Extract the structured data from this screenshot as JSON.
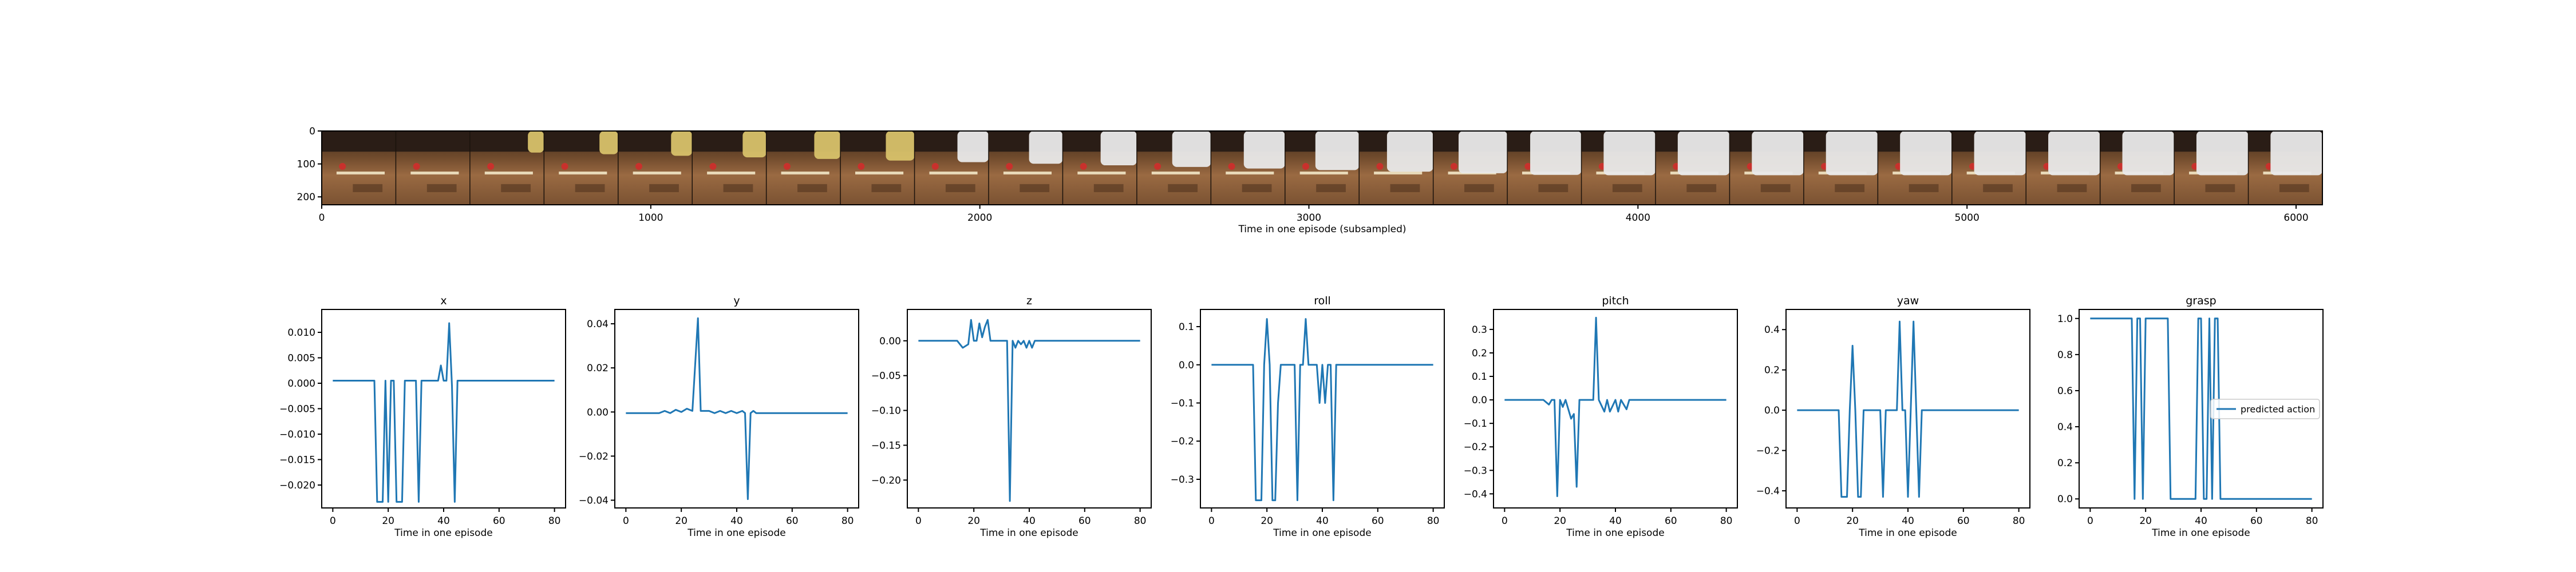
{
  "colors": {
    "series": "#1f77b4",
    "wood": "#8b5e3c",
    "wood_dark": "#5a3b22",
    "wall": "#2a1d16",
    "robot_arm": "#e9e9e9",
    "object_red": "#c8312c"
  },
  "filmstrip": {
    "xlabel": "Time in one episode (subsampled)",
    "x_ticks": [
      "0",
      "1000",
      "2000",
      "3000",
      "4000",
      "5000",
      "6000"
    ],
    "y_ticks": [
      "0",
      "100",
      "200"
    ],
    "x_range": [
      0,
      6080
    ],
    "y_range": [
      0,
      224
    ],
    "frame_count": 27
  },
  "chart_data": [
    {
      "type": "line",
      "title": "x",
      "xlabel": "Time in one episode",
      "ylabel": "",
      "xlim": [
        -4,
        84
      ],
      "ylim": [
        -0.0245,
        0.0145
      ],
      "x_ticks": [
        0,
        20,
        40,
        60,
        80
      ],
      "y_ticks": [
        0.01,
        0.005,
        0.0,
        -0.005,
        -0.01,
        -0.015,
        -0.02
      ],
      "y_tick_labels": [
        "0.010",
        "0.005",
        "0.000",
        "−0.005",
        "−0.010",
        "−0.015",
        "−0.020"
      ],
      "series": [
        {
          "name": "",
          "points": [
            [
              0,
              0.0005
            ],
            [
              14,
              0.0005
            ],
            [
              15,
              0.0005
            ],
            [
              16,
              -0.0233
            ],
            [
              18,
              -0.0233
            ],
            [
              19,
              0.0005
            ],
            [
              20,
              -0.0233
            ],
            [
              21,
              0.0005
            ],
            [
              22,
              0.0005
            ],
            [
              23,
              -0.0233
            ],
            [
              25,
              -0.0233
            ],
            [
              26,
              0.0005
            ],
            [
              30,
              0.0005
            ],
            [
              31,
              -0.0233
            ],
            [
              32,
              0.0005
            ],
            [
              36,
              0.0005
            ],
            [
              38,
              0.0005
            ],
            [
              39,
              0.0035
            ],
            [
              40,
              0.0005
            ],
            [
              41,
              0.0005
            ],
            [
              42,
              0.0118
            ],
            [
              43,
              -0.0005
            ],
            [
              44,
              -0.0233
            ],
            [
              45,
              0.0005
            ],
            [
              80,
              0.0005
            ]
          ]
        }
      ]
    },
    {
      "type": "line",
      "title": "y",
      "xlabel": "Time in one episode",
      "ylabel": "",
      "xlim": [
        -4,
        84
      ],
      "ylim": [
        -0.0435,
        0.0465
      ],
      "x_ticks": [
        0,
        20,
        40,
        60,
        80
      ],
      "y_ticks": [
        0.04,
        0.02,
        0.0,
        -0.02,
        -0.04
      ],
      "y_tick_labels": [
        "0.04",
        "0.02",
        "0.00",
        "−0.02",
        "−0.04"
      ],
      "series": [
        {
          "name": "",
          "points": [
            [
              0,
              -0.0005
            ],
            [
              12,
              -0.0005
            ],
            [
              14,
              0.0005
            ],
            [
              16,
              -0.0005
            ],
            [
              18,
              0.001
            ],
            [
              20,
              0.0
            ],
            [
              22,
              0.0015
            ],
            [
              24,
              0.0005
            ],
            [
              26,
              0.0425
            ],
            [
              27,
              0.0005
            ],
            [
              30,
              0.0005
            ],
            [
              32,
              -0.0005
            ],
            [
              34,
              0.0005
            ],
            [
              36,
              -0.0005
            ],
            [
              38,
              0.0005
            ],
            [
              40,
              -0.0005
            ],
            [
              42,
              0.0005
            ],
            [
              43,
              -0.0005
            ],
            [
              44,
              -0.0395
            ],
            [
              45,
              -0.0005
            ],
            [
              46,
              0.0005
            ],
            [
              47,
              -0.0005
            ],
            [
              80,
              -0.0005
            ]
          ]
        }
      ]
    },
    {
      "type": "line",
      "title": "z",
      "xlabel": "Time in one episode",
      "ylabel": "",
      "xlim": [
        -4,
        84
      ],
      "ylim": [
        -0.24,
        0.045
      ],
      "x_ticks": [
        0,
        20,
        40,
        60,
        80
      ],
      "y_ticks": [
        0.0,
        -0.05,
        -0.1,
        -0.15,
        -0.2
      ],
      "y_tick_labels": [
        "0.00",
        "−0.05",
        "−0.10",
        "−0.15",
        "−0.20"
      ],
      "series": [
        {
          "name": "",
          "points": [
            [
              0,
              0.0
            ],
            [
              14,
              0.0
            ],
            [
              16,
              -0.01
            ],
            [
              18,
              -0.005
            ],
            [
              19,
              0.03
            ],
            [
              20,
              0.0
            ],
            [
              21,
              0.0
            ],
            [
              22,
              0.025
            ],
            [
              23,
              0.005
            ],
            [
              24,
              0.02
            ],
            [
              25,
              0.03
            ],
            [
              26,
              0.0
            ],
            [
              30,
              0.0
            ],
            [
              32,
              0.0
            ],
            [
              33,
              -0.23
            ],
            [
              34,
              0.0
            ],
            [
              35,
              -0.01
            ],
            [
              36,
              0.0
            ],
            [
              37,
              -0.005
            ],
            [
              38,
              0.0
            ],
            [
              39,
              -0.01
            ],
            [
              40,
              0.0
            ],
            [
              41,
              -0.01
            ],
            [
              42,
              0.0
            ],
            [
              80,
              0.0
            ]
          ]
        }
      ]
    },
    {
      "type": "line",
      "title": "roll",
      "xlabel": "Time in one episode",
      "ylabel": "",
      "xlim": [
        -4,
        84
      ],
      "ylim": [
        -0.375,
        0.145
      ],
      "x_ticks": [
        0,
        20,
        40,
        60,
        80
      ],
      "y_ticks": [
        0.1,
        0.0,
        -0.1,
        -0.2,
        -0.3
      ],
      "y_tick_labels": [
        "0.1",
        "0.0",
        "−0.1",
        "−0.2",
        "−0.3"
      ],
      "series": [
        {
          "name": "",
          "points": [
            [
              0,
              0.0
            ],
            [
              14,
              0.0
            ],
            [
              15,
              0.0
            ],
            [
              16,
              -0.355
            ],
            [
              18,
              -0.355
            ],
            [
              19,
              0.0
            ],
            [
              20,
              0.12
            ],
            [
              21,
              0.0
            ],
            [
              22,
              -0.355
            ],
            [
              23,
              -0.355
            ],
            [
              24,
              -0.1
            ],
            [
              25,
              0.0
            ],
            [
              30,
              0.0
            ],
            [
              31,
              -0.355
            ],
            [
              32,
              0.0
            ],
            [
              33,
              0.0
            ],
            [
              34,
              0.12
            ],
            [
              35,
              0.0
            ],
            [
              38,
              0.0
            ],
            [
              39,
              -0.1
            ],
            [
              40,
              0.0
            ],
            [
              41,
              -0.1
            ],
            [
              42,
              0.0
            ],
            [
              43,
              0.0
            ],
            [
              44,
              -0.355
            ],
            [
              45,
              0.0
            ],
            [
              80,
              0.0
            ]
          ]
        }
      ]
    },
    {
      "type": "line",
      "title": "pitch",
      "xlabel": "Time in one episode",
      "ylabel": "",
      "xlim": [
        -4,
        84
      ],
      "ylim": [
        -0.46,
        0.385
      ],
      "x_ticks": [
        0,
        20,
        40,
        60,
        80
      ],
      "y_ticks": [
        0.3,
        0.2,
        0.1,
        0.0,
        -0.1,
        -0.2,
        -0.3,
        -0.4
      ],
      "y_tick_labels": [
        "0.3",
        "0.2",
        "0.1",
        "0.0",
        "−0.1",
        "−0.2",
        "−0.3",
        "−0.4"
      ],
      "series": [
        {
          "name": "",
          "points": [
            [
              0,
              0.0
            ],
            [
              14,
              0.0
            ],
            [
              16,
              -0.02
            ],
            [
              17,
              0.0
            ],
            [
              18,
              0.0
            ],
            [
              19,
              -0.41
            ],
            [
              20,
              0.0
            ],
            [
              21,
              -0.03
            ],
            [
              22,
              0.0
            ],
            [
              24,
              -0.08
            ],
            [
              25,
              -0.06
            ],
            [
              26,
              -0.37
            ],
            [
              27,
              0.0
            ],
            [
              32,
              0.0
            ],
            [
              33,
              0.35
            ],
            [
              34,
              0.0
            ],
            [
              36,
              -0.05
            ],
            [
              37,
              0.0
            ],
            [
              38,
              -0.05
            ],
            [
              40,
              0.0
            ],
            [
              41,
              -0.05
            ],
            [
              42,
              0.0
            ],
            [
              44,
              -0.04
            ],
            [
              45,
              0.0
            ],
            [
              80,
              0.0
            ]
          ]
        }
      ]
    },
    {
      "type": "line",
      "title": "yaw",
      "xlabel": "Time in one episode",
      "ylabel": "",
      "xlim": [
        -4,
        84
      ],
      "ylim": [
        -0.485,
        0.5
      ],
      "x_ticks": [
        0,
        20,
        40,
        60,
        80
      ],
      "y_ticks": [
        0.4,
        0.2,
        0.0,
        -0.2,
        -0.4
      ],
      "y_tick_labels": [
        "0.4",
        "0.2",
        "0.0",
        "−0.2",
        "−0.4"
      ],
      "series": [
        {
          "name": "",
          "points": [
            [
              0,
              0.0
            ],
            [
              14,
              0.0
            ],
            [
              15,
              0.0
            ],
            [
              16,
              -0.43
            ],
            [
              18,
              -0.43
            ],
            [
              19,
              0.0
            ],
            [
              20,
              0.32
            ],
            [
              21,
              0.0
            ],
            [
              22,
              -0.43
            ],
            [
              23,
              -0.43
            ],
            [
              24,
              0.0
            ],
            [
              25,
              0.0
            ],
            [
              30,
              0.0
            ],
            [
              31,
              -0.43
            ],
            [
              32,
              0.0
            ],
            [
              36,
              0.0
            ],
            [
              37,
              0.44
            ],
            [
              38,
              0.0
            ],
            [
              39,
              0.0
            ],
            [
              40,
              -0.43
            ],
            [
              41,
              0.0
            ],
            [
              42,
              0.44
            ],
            [
              43,
              0.0
            ],
            [
              44,
              -0.43
            ],
            [
              45,
              0.0
            ],
            [
              80,
              0.0
            ]
          ]
        }
      ]
    },
    {
      "type": "line",
      "title": "grasp",
      "xlabel": "Time in one episode",
      "ylabel": "",
      "xlim": [
        -4,
        84
      ],
      "ylim": [
        -0.05,
        1.05
      ],
      "x_ticks": [
        0,
        20,
        40,
        60,
        80
      ],
      "y_ticks": [
        1.0,
        0.8,
        0.6,
        0.4,
        0.2,
        0.0
      ],
      "y_tick_labels": [
        "1.0",
        "0.8",
        "0.6",
        "0.4",
        "0.2",
        "0.0"
      ],
      "legend": {
        "entries": [
          "predicted action"
        ],
        "placement": "right"
      },
      "series": [
        {
          "name": "predicted action",
          "points": [
            [
              0,
              1.0
            ],
            [
              14,
              1.0
            ],
            [
              15,
              1.0
            ],
            [
              16,
              0.0
            ],
            [
              17,
              1.0
            ],
            [
              18,
              1.0
            ],
            [
              19,
              0.0
            ],
            [
              20,
              1.0
            ],
            [
              21,
              1.0
            ],
            [
              28,
              1.0
            ],
            [
              29,
              0.0
            ],
            [
              38,
              0.0
            ],
            [
              39,
              1.0
            ],
            [
              40,
              1.0
            ],
            [
              41,
              0.0
            ],
            [
              42,
              0.0
            ],
            [
              43,
              1.0
            ],
            [
              44,
              0.0
            ],
            [
              45,
              1.0
            ],
            [
              46,
              1.0
            ],
            [
              47,
              0.0
            ],
            [
              80,
              0.0
            ]
          ]
        }
      ]
    }
  ]
}
